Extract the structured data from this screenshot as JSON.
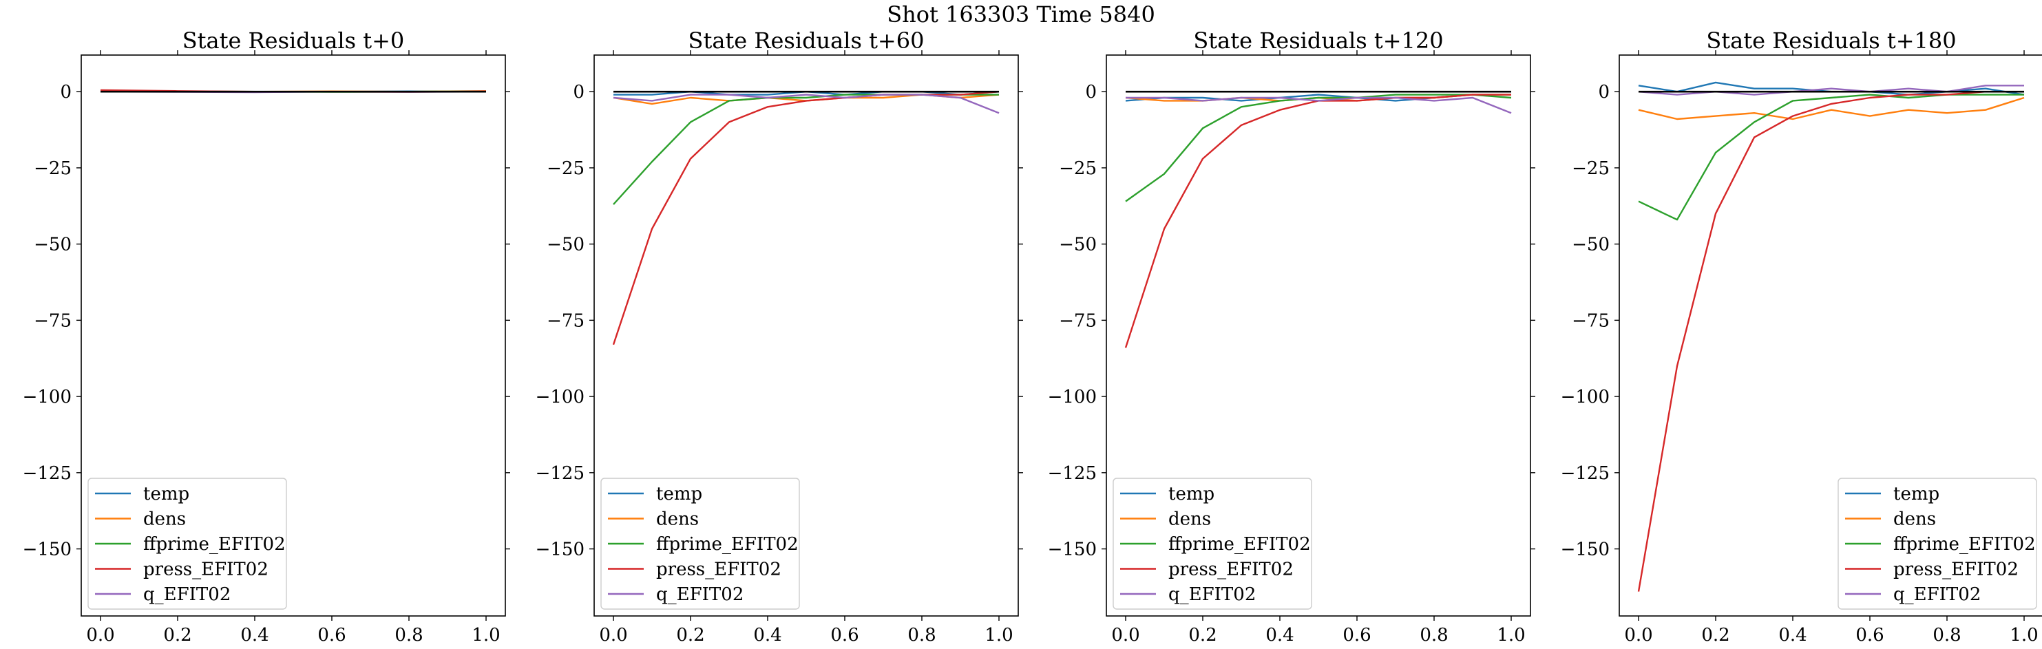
{
  "figure": {
    "suptitle": "Shot 163303   Time 5840"
  },
  "colors": {
    "temp": "#1f77b4",
    "dens": "#ff7f0e",
    "ffprime_EFIT02": "#2ca02c",
    "press_EFIT02": "#d62728",
    "q_EFIT02": "#9467bd",
    "zero_line": "#000000"
  },
  "chart_data": [
    {
      "type": "line",
      "title": "State Residuals t+0",
      "xlabel": "",
      "ylabel": "",
      "xlim": [
        -0.05,
        1.05
      ],
      "ylim": [
        -172,
        12
      ],
      "xticks": [
        0.0,
        0.2,
        0.4,
        0.6,
        0.8,
        1.0
      ],
      "xtick_labels": [
        "0.0",
        "0.2",
        "0.4",
        "0.6",
        "0.8",
        "1.0"
      ],
      "yticks": [
        0,
        -25,
        -50,
        -75,
        -100,
        -125,
        -150
      ],
      "ytick_labels": [
        "0",
        "−25",
        "−50",
        "−75",
        "−100",
        "−125",
        "−150"
      ],
      "legend_position": "lower-left",
      "zero_line": true,
      "x": [
        0.0,
        0.2,
        0.4,
        0.6,
        0.8,
        1.0
      ],
      "series": [
        {
          "name": "temp",
          "values": [
            0.2,
            0.1,
            -0.1,
            0.0,
            0.1,
            0.0
          ]
        },
        {
          "name": "dens",
          "values": [
            0.1,
            0.0,
            0.0,
            0.1,
            0.0,
            0.2
          ]
        },
        {
          "name": "ffprime_EFIT02",
          "values": [
            0.0,
            0.1,
            0.0,
            -0.1,
            0.0,
            0.1
          ]
        },
        {
          "name": "press_EFIT02",
          "values": [
            0.5,
            0.2,
            0.0,
            0.0,
            -0.1,
            0.1
          ]
        },
        {
          "name": "q_EFIT02",
          "values": [
            0.0,
            -0.1,
            -0.2,
            0.0,
            -0.1,
            0.0
          ]
        }
      ]
    },
    {
      "type": "line",
      "title": "State Residuals t+60",
      "xlabel": "",
      "ylabel": "",
      "xlim": [
        -0.05,
        1.05
      ],
      "ylim": [
        -172,
        12
      ],
      "xticks": [
        0.0,
        0.2,
        0.4,
        0.6,
        0.8,
        1.0
      ],
      "xtick_labels": [
        "0.0",
        "0.2",
        "0.4",
        "0.6",
        "0.8",
        "1.0"
      ],
      "yticks": [
        0,
        -25,
        -50,
        -75,
        -100,
        -125,
        -150
      ],
      "ytick_labels": [
        "0",
        "−25",
        "−50",
        "−75",
        "−100",
        "−125",
        "−150"
      ],
      "legend_position": "lower-left",
      "zero_line": true,
      "x": [
        0.0,
        0.1,
        0.2,
        0.3,
        0.4,
        0.5,
        0.6,
        0.7,
        0.8,
        0.9,
        1.0
      ],
      "series": [
        {
          "name": "temp",
          "values": [
            -1,
            -1,
            0,
            -1,
            -1,
            0,
            -1,
            0,
            0,
            -1,
            0
          ]
        },
        {
          "name": "dens",
          "values": [
            -2,
            -4,
            -2,
            -3,
            -2,
            -3,
            -2,
            -2,
            -1,
            -2,
            -1
          ]
        },
        {
          "name": "ffprime_EFIT02",
          "values": [
            -37,
            -23,
            -10,
            -3,
            -2,
            -2,
            -1,
            -1,
            -1,
            -1,
            -1
          ]
        },
        {
          "name": "press_EFIT02",
          "values": [
            -83,
            -45,
            -22,
            -10,
            -5,
            -3,
            -2,
            -1,
            -1,
            -1,
            0
          ]
        },
        {
          "name": "q_EFIT02",
          "values": [
            -2,
            -3,
            -1,
            -1,
            -2,
            -1,
            -2,
            -1,
            -1,
            -2,
            -7
          ]
        }
      ]
    },
    {
      "type": "line",
      "title": "State Residuals t+120",
      "xlabel": "",
      "ylabel": "",
      "xlim": [
        -0.05,
        1.05
      ],
      "ylim": [
        -172,
        12
      ],
      "xticks": [
        0.0,
        0.2,
        0.4,
        0.6,
        0.8,
        1.0
      ],
      "xtick_labels": [
        "0.0",
        "0.2",
        "0.4",
        "0.6",
        "0.8",
        "1.0"
      ],
      "yticks": [
        0,
        -25,
        -50,
        -75,
        -100,
        -125,
        -150
      ],
      "ytick_labels": [
        "0",
        "−25",
        "−50",
        "−75",
        "−100",
        "−125",
        "−150"
      ],
      "legend_position": "lower-left",
      "zero_line": true,
      "x": [
        0.0,
        0.1,
        0.2,
        0.3,
        0.4,
        0.5,
        0.6,
        0.7,
        0.8,
        0.9,
        1.0
      ],
      "series": [
        {
          "name": "temp",
          "values": [
            -3,
            -2,
            -2,
            -3,
            -2,
            -1,
            -2,
            -3,
            -2,
            -1,
            -1
          ]
        },
        {
          "name": "dens",
          "values": [
            -2,
            -3,
            -3,
            -2,
            -3,
            -2,
            -3,
            -2,
            -2,
            -1,
            -1
          ]
        },
        {
          "name": "ffprime_EFIT02",
          "values": [
            -36,
            -27,
            -12,
            -5,
            -3,
            -2,
            -2,
            -1,
            -1,
            -1,
            -2
          ]
        },
        {
          "name": "press_EFIT02",
          "values": [
            -84,
            -45,
            -22,
            -11,
            -6,
            -3,
            -3,
            -2,
            -2,
            -1,
            -1
          ]
        },
        {
          "name": "q_EFIT02",
          "values": [
            -2,
            -2,
            -3,
            -2,
            -2,
            -3,
            -2,
            -2,
            -3,
            -2,
            -7
          ]
        }
      ]
    },
    {
      "type": "line",
      "title": "State Residuals t+180",
      "xlabel": "",
      "ylabel": "",
      "xlim": [
        -0.05,
        1.05
      ],
      "ylim": [
        -172,
        12
      ],
      "xticks": [
        0.0,
        0.2,
        0.4,
        0.6,
        0.8,
        1.0
      ],
      "xtick_labels": [
        "0.0",
        "0.2",
        "0.4",
        "0.6",
        "0.8",
        "1.0"
      ],
      "yticks": [
        0,
        -25,
        -50,
        -75,
        -100,
        -125,
        -150
      ],
      "ytick_labels": [
        "0",
        "−25",
        "−50",
        "−75",
        "−100",
        "−125",
        "−150"
      ],
      "legend_position": "lower-right",
      "zero_line": true,
      "x": [
        0.0,
        0.1,
        0.2,
        0.3,
        0.4,
        0.5,
        0.6,
        0.7,
        0.8,
        0.9,
        1.0
      ],
      "series": [
        {
          "name": "temp",
          "values": [
            2,
            0,
            3,
            1,
            1,
            0,
            0,
            -1,
            0,
            1,
            -1
          ]
        },
        {
          "name": "dens",
          "values": [
            -6,
            -9,
            -8,
            -7,
            -9,
            -6,
            -8,
            -6,
            -7,
            -6,
            -2
          ]
        },
        {
          "name": "ffprime_EFIT02",
          "values": [
            -36,
            -42,
            -20,
            -10,
            -3,
            -2,
            -1,
            -2,
            -1,
            -1,
            -1
          ]
        },
        {
          "name": "press_EFIT02",
          "values": [
            -164,
            -90,
            -40,
            -15,
            -8,
            -4,
            -2,
            -1,
            -1,
            0,
            0
          ]
        },
        {
          "name": "q_EFIT02",
          "values": [
            0,
            -1,
            0,
            -1,
            0,
            1,
            0,
            1,
            0,
            2,
            2
          ]
        }
      ]
    }
  ]
}
